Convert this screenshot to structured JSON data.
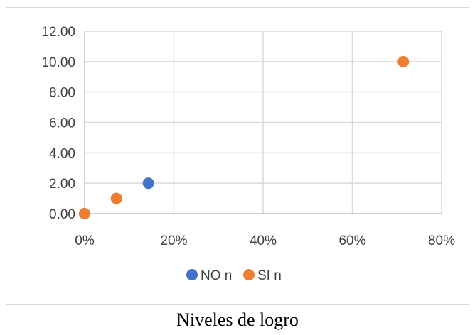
{
  "caption": "Niveles de logro",
  "chart_data": {
    "type": "scatter",
    "title": "",
    "xlabel": "",
    "ylabel": "",
    "xlim": [
      0,
      0.8
    ],
    "ylim": [
      0,
      12
    ],
    "x_ticks": [
      "0%",
      "20%",
      "40%",
      "60%",
      "80%"
    ],
    "y_ticks": [
      "0.00",
      "2.00",
      "4.00",
      "6.00",
      "8.00",
      "10.00",
      "12.00"
    ],
    "grid": true,
    "legend_position": "bottom",
    "series": [
      {
        "name": "NO n",
        "color": "#4472c4",
        "points": [
          {
            "x": 0.0,
            "y": 0
          },
          {
            "x": 0.0714,
            "y": 1
          },
          {
            "x": 0.1429,
            "y": 2
          }
        ]
      },
      {
        "name": "SI n",
        "color": "#ed7d31",
        "points": [
          {
            "x": 0.0,
            "y": 0
          },
          {
            "x": 0.0714,
            "y": 1
          },
          {
            "x": 0.7143,
            "y": 10
          }
        ]
      }
    ]
  }
}
